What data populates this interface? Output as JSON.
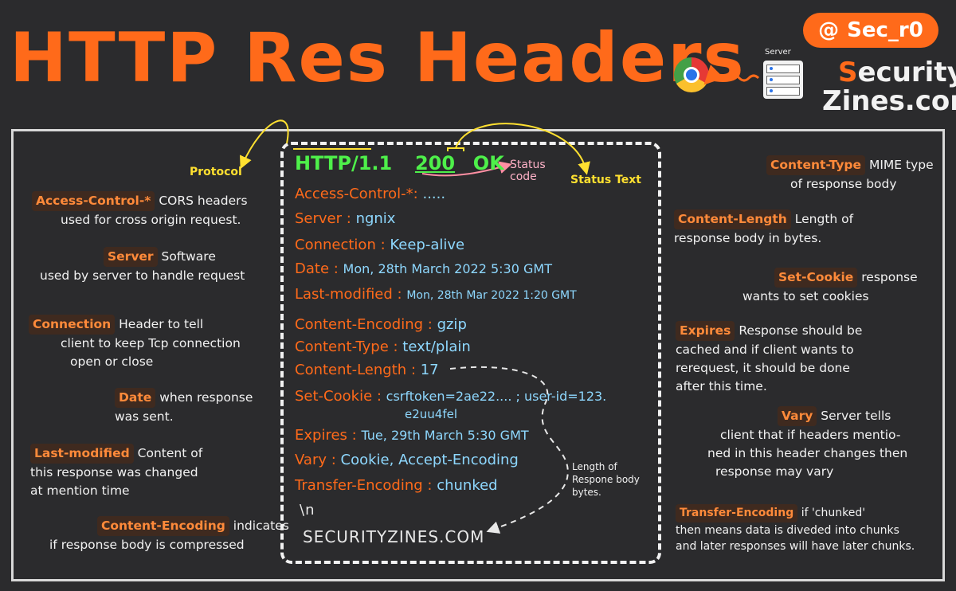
{
  "header": {
    "title": "HTTP Res Headers",
    "handle_icon": "@",
    "handle": "Sec_r0",
    "brand_line1_initial": "S",
    "brand_line1_rest": "ecurity",
    "brand_line2": "Zines.com",
    "server_label": "Server"
  },
  "response": {
    "protocol": "HTTP/1.1",
    "status_code": "200",
    "status_text": "OK",
    "lines": [
      {
        "key": "Access-Control-*:",
        "value": "....."
      },
      {
        "key": "Server :",
        "value": "ngnix"
      },
      {
        "key": "Connection :",
        "value": "Keep-alive"
      },
      {
        "key": "Date :",
        "value": "Mon, 28th March 2022  5:30 GMT"
      },
      {
        "key": "Last-modified :",
        "value": "Mon, 28th Mar 2022 1:20 GMT"
      },
      {
        "key": "Content-Encoding :",
        "value": "gzip"
      },
      {
        "key": "Content-Type :",
        "value": "text/plain"
      },
      {
        "key": "Content-Length :",
        "value": "17"
      },
      {
        "key": "Set-Cookie :",
        "value": "csrftoken=2ae22.... ; user-id=123."
      },
      {
        "key": "",
        "value": "e2uu4fel"
      },
      {
        "key": "Expires :",
        "value": "Tue, 29th March   5:30 GMT"
      },
      {
        "key": "Vary :",
        "value": "Cookie, Accept-Encoding"
      },
      {
        "key": "Transfer-Encoding :",
        "value": "chunked"
      }
    ],
    "newline": "\\n",
    "body": "SECURITYZINES.COM"
  },
  "annotations": {
    "protocol": "Protocol",
    "status_code": "Status\ncode",
    "status_text": "Status Text",
    "length_note": "Length of\nRespone body\nbytes."
  },
  "left_notes": [
    {
      "term": "Access-Control-*",
      "text": "CORS headers",
      "text2": "used for cross origin request."
    },
    {
      "term": "Server",
      "text": "Software",
      "text2": "used by server to handle request"
    },
    {
      "term": "Connection",
      "text": "Header to tell",
      "text2": "client to keep Tcp connection",
      "text3": "open or close"
    },
    {
      "term": "Date",
      "text": "when response",
      "text2": "was sent."
    },
    {
      "term": "Last-modified",
      "text": "Content of",
      "text2": "this response was changed",
      "text3": "at mention time"
    },
    {
      "term": "Content-Encoding",
      "text": "indicates",
      "text2": "if response body is compressed"
    }
  ],
  "right_notes": [
    {
      "term": "Content-Type",
      "text": "MIME type",
      "text2": "of response body"
    },
    {
      "term": "Content-Length",
      "text": "Length of",
      "text2": "response body in bytes."
    },
    {
      "term": "Set-Cookie",
      "text": "response",
      "text2": "wants to set cookies"
    },
    {
      "term": "Expires",
      "text": "Response should be",
      "text2": "cached and if client wants to",
      "text3": "rerequest, it should be done",
      "text4": "after this time."
    },
    {
      "term": "Vary",
      "text": "Server tells",
      "text2": "client that if headers mentio-",
      "text3": "ned in this header changes then",
      "text4": "response may vary"
    },
    {
      "term": "Transfer-Encoding",
      "text": "if 'chunked'",
      "text2": "then means data is diveded into chunks",
      "text3": "and later responses will have later chunks."
    }
  ],
  "colors": {
    "accent": "#ff6a1a",
    "value": "#8ed8ff",
    "status": "#4ef04a",
    "annotation": "#ffe030",
    "arrow_pink": "#ff8fa3"
  }
}
